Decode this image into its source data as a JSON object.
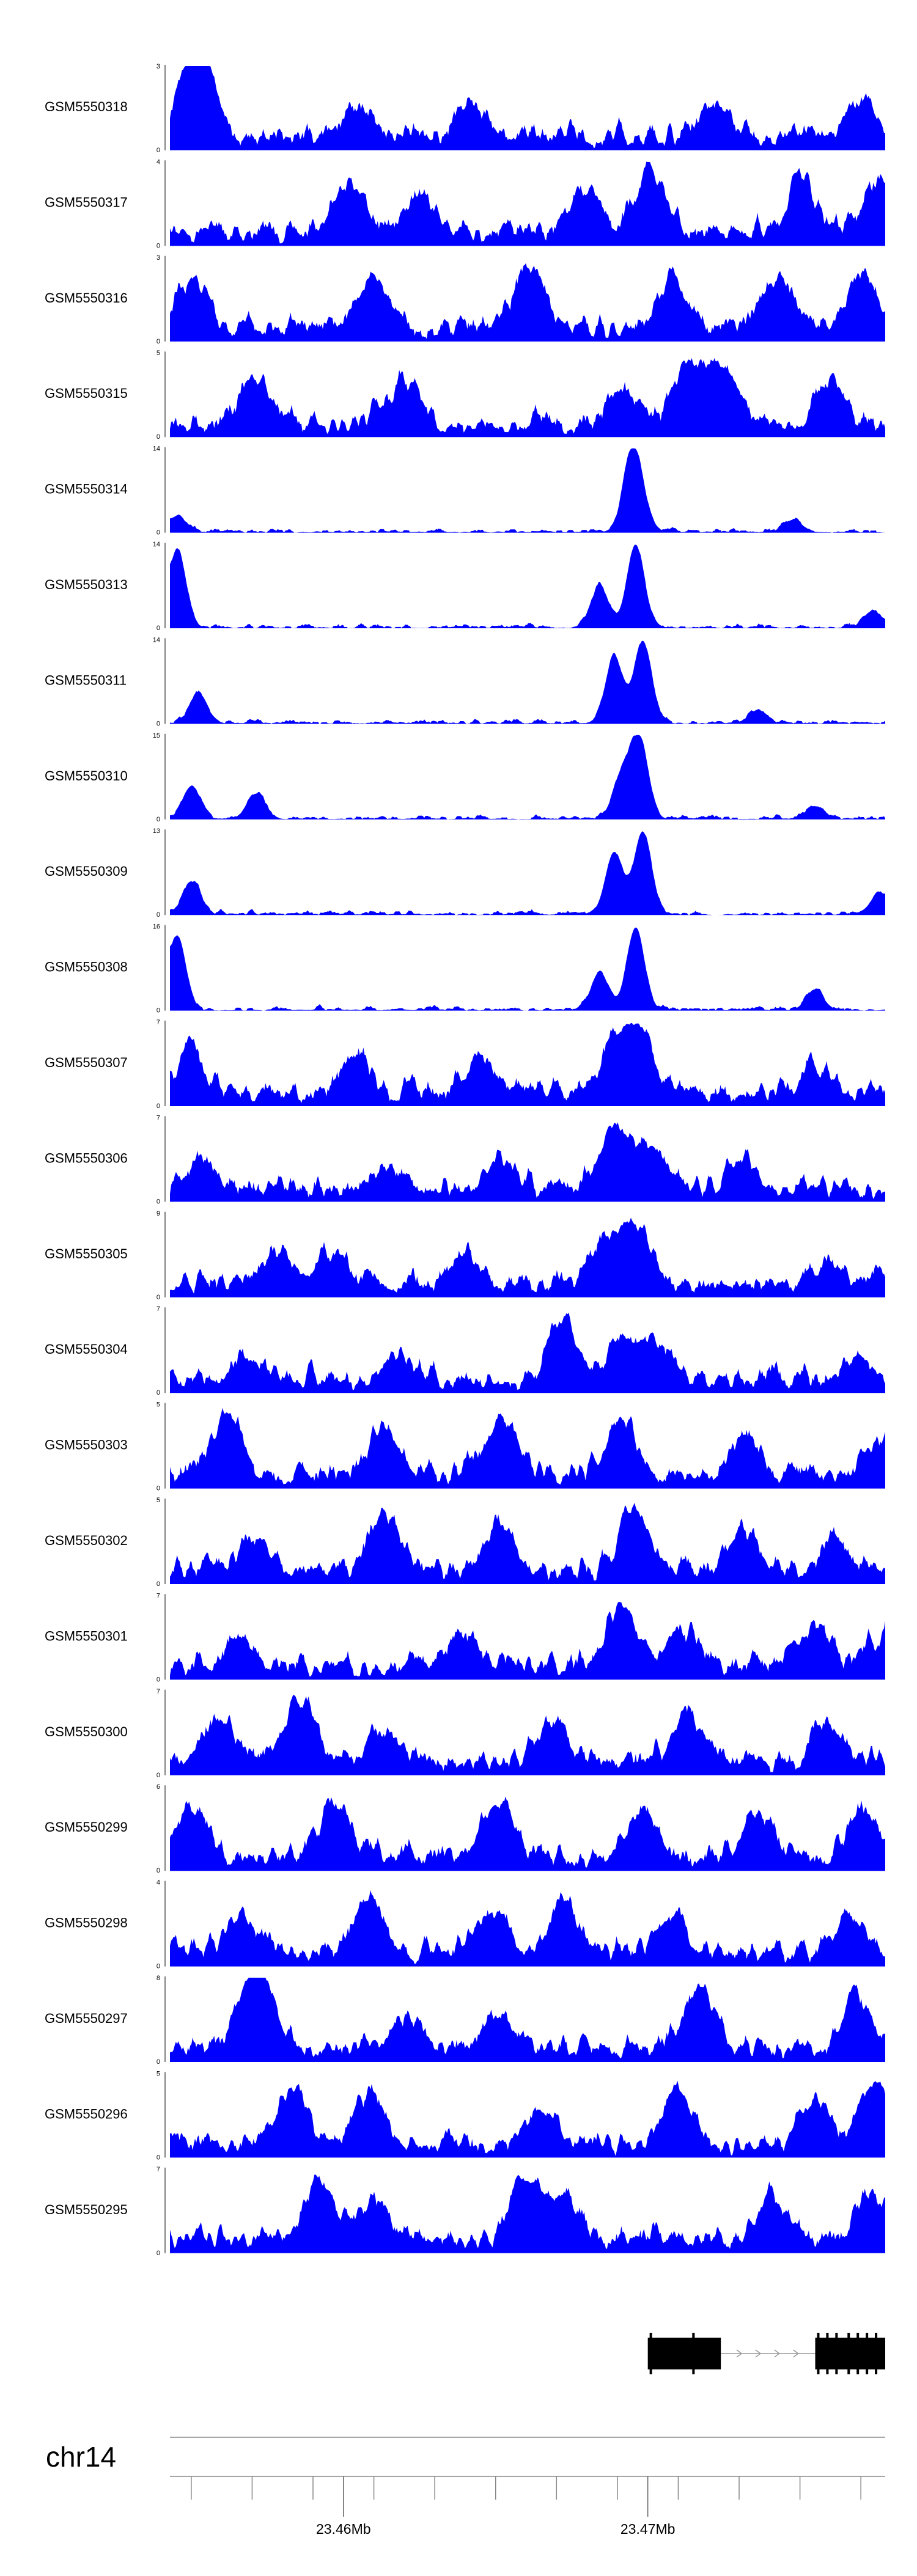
{
  "chart_data": {
    "type": "area",
    "color": "#0000ff",
    "x_unit": "Mb",
    "xlim": [
      23.4543,
      23.4778
    ],
    "axis": {
      "chromosome": "chr14",
      "ticks": [
        23.455,
        23.457,
        23.459,
        23.461,
        23.463,
        23.465,
        23.467,
        23.469,
        23.471,
        23.473,
        23.475,
        23.477
      ],
      "labeled_ticks": [
        {
          "value": 23.46,
          "label": "23.46Mb"
        },
        {
          "value": 23.47,
          "label": "23.47Mb"
        }
      ]
    },
    "tracks": [
      {
        "name": "GSM5550318",
        "ymax": "3",
        "max": 3,
        "peaks": [
          [
            0.03,
            0.95
          ],
          [
            0.045,
            1.0
          ],
          [
            0.26,
            0.4
          ],
          [
            0.42,
            0.55
          ],
          [
            0.76,
            0.5
          ],
          [
            0.97,
            0.55
          ]
        ]
      },
      {
        "name": "GSM5550317",
        "ymax": "4",
        "max": 4,
        "peaks": [
          [
            0.25,
            0.85
          ],
          [
            0.35,
            0.6
          ],
          [
            0.58,
            0.7
          ],
          [
            0.67,
            1.0
          ],
          [
            0.88,
            0.8
          ],
          [
            0.99,
            0.7
          ]
        ]
      },
      {
        "name": "GSM5550316",
        "ymax": "3",
        "max": 3,
        "peaks": [
          [
            0.03,
            0.8
          ],
          [
            0.28,
            0.85
          ],
          [
            0.5,
            1.0
          ],
          [
            0.7,
            0.8
          ],
          [
            0.85,
            0.85
          ],
          [
            0.97,
            0.75
          ]
        ]
      },
      {
        "name": "GSM5550315",
        "ymax": "5",
        "max": 5,
        "peaks": [
          [
            0.12,
            0.75
          ],
          [
            0.33,
            0.7
          ],
          [
            0.63,
            0.5
          ],
          [
            0.72,
            0.9
          ],
          [
            0.77,
            0.95
          ],
          [
            0.92,
            0.65
          ]
        ]
      },
      {
        "name": "GSM5550314",
        "ymax": "14",
        "max": 14,
        "peaks": [
          [
            0.01,
            0.2
          ],
          [
            0.66,
            0.2
          ],
          [
            0.645,
            1.0
          ],
          [
            0.87,
            0.15
          ]
        ]
      },
      {
        "name": "GSM5550313",
        "ymax": "14",
        "max": 14,
        "peaks": [
          [
            0.01,
            0.95
          ],
          [
            0.6,
            0.5
          ],
          [
            0.65,
            1.0
          ],
          [
            0.98,
            0.2
          ]
        ]
      },
      {
        "name": "GSM5550311",
        "ymax": "14",
        "max": 14,
        "peaks": [
          [
            0.04,
            0.35
          ],
          [
            0.62,
            0.8
          ],
          [
            0.66,
            1.0
          ],
          [
            0.82,
            0.15
          ]
        ]
      },
      {
        "name": "GSM5550310",
        "ymax": "15",
        "max": 15,
        "peaks": [
          [
            0.03,
            0.4
          ],
          [
            0.12,
            0.3
          ],
          [
            0.63,
            0.5
          ],
          [
            0.655,
            1.0
          ],
          [
            0.9,
            0.15
          ]
        ]
      },
      {
        "name": "GSM5550309",
        "ymax": "13",
        "max": 13,
        "peaks": [
          [
            0.03,
            0.4
          ],
          [
            0.62,
            0.75
          ],
          [
            0.66,
            1.0
          ],
          [
            0.99,
            0.25
          ]
        ]
      },
      {
        "name": "GSM5550308",
        "ymax": "16",
        "max": 16,
        "peaks": [
          [
            0.01,
            0.9
          ],
          [
            0.6,
            0.45
          ],
          [
            0.65,
            1.0
          ],
          [
            0.9,
            0.25
          ]
        ]
      },
      {
        "name": "GSM5550307",
        "ymax": "7",
        "max": 7,
        "peaks": [
          [
            0.03,
            0.6
          ],
          [
            0.26,
            0.6
          ],
          [
            0.43,
            0.55
          ],
          [
            0.62,
            0.7
          ],
          [
            0.655,
            1.0
          ],
          [
            0.9,
            0.4
          ]
        ]
      },
      {
        "name": "GSM5550306",
        "ymax": "7",
        "max": 7,
        "peaks": [
          [
            0.04,
            0.4
          ],
          [
            0.3,
            0.4
          ],
          [
            0.46,
            0.45
          ],
          [
            0.62,
            1.0
          ],
          [
            0.67,
            0.7
          ],
          [
            0.8,
            0.5
          ]
        ]
      },
      {
        "name": "GSM5550305",
        "ymax": "9",
        "max": 9,
        "peaks": [
          [
            0.15,
            0.55
          ],
          [
            0.22,
            0.5
          ],
          [
            0.41,
            0.35
          ],
          [
            0.6,
            0.5
          ],
          [
            0.645,
            1.0
          ],
          [
            0.92,
            0.3
          ]
        ]
      },
      {
        "name": "GSM5550304",
        "ymax": "7",
        "max": 7,
        "peaks": [
          [
            0.11,
            0.4
          ],
          [
            0.32,
            0.4
          ],
          [
            0.55,
            1.0
          ],
          [
            0.63,
            0.7
          ],
          [
            0.68,
            0.6
          ],
          [
            0.96,
            0.45
          ]
        ]
      },
      {
        "name": "GSM5550303",
        "ymax": "5",
        "max": 5,
        "peaks": [
          [
            0.08,
            1.0
          ],
          [
            0.3,
            0.7
          ],
          [
            0.46,
            0.95
          ],
          [
            0.63,
            0.85
          ],
          [
            0.8,
            0.6
          ],
          [
            0.99,
            0.5
          ]
        ]
      },
      {
        "name": "GSM5550302",
        "ymax": "5",
        "max": 5,
        "peaks": [
          [
            0.12,
            0.6
          ],
          [
            0.3,
            0.85
          ],
          [
            0.46,
            0.75
          ],
          [
            0.65,
            1.0
          ],
          [
            0.8,
            0.65
          ],
          [
            0.93,
            0.45
          ]
        ]
      },
      {
        "name": "GSM5550301",
        "ymax": "7",
        "max": 7,
        "peaks": [
          [
            0.1,
            0.45
          ],
          [
            0.41,
            0.5
          ],
          [
            0.63,
            1.0
          ],
          [
            0.72,
            0.5
          ],
          [
            0.9,
            0.65
          ],
          [
            0.99,
            0.4
          ]
        ]
      },
      {
        "name": "GSM5550300",
        "ymax": "7",
        "max": 7,
        "peaks": [
          [
            0.07,
            0.7
          ],
          [
            0.18,
            1.0
          ],
          [
            0.3,
            0.5
          ],
          [
            0.53,
            0.6
          ],
          [
            0.72,
            0.75
          ],
          [
            0.92,
            0.6
          ]
        ]
      },
      {
        "name": "GSM5550299",
        "ymax": "6",
        "max": 6,
        "peaks": [
          [
            0.03,
            0.8
          ],
          [
            0.23,
            0.85
          ],
          [
            0.46,
            0.9
          ],
          [
            0.66,
            0.75
          ],
          [
            0.82,
            0.75
          ],
          [
            0.97,
            0.8
          ]
        ]
      },
      {
        "name": "GSM5550298",
        "ymax": "4",
        "max": 4,
        "peaks": [
          [
            0.1,
            0.65
          ],
          [
            0.28,
            0.85
          ],
          [
            0.45,
            0.7
          ],
          [
            0.55,
            0.75
          ],
          [
            0.7,
            0.6
          ],
          [
            0.95,
            0.6
          ]
        ]
      },
      {
        "name": "GSM5550297",
        "ymax": "8",
        "max": 8,
        "peaks": [
          [
            0.11,
            0.75
          ],
          [
            0.13,
            0.9
          ],
          [
            0.33,
            0.5
          ],
          [
            0.46,
            0.6
          ],
          [
            0.74,
            1.0
          ],
          [
            0.96,
            0.75
          ]
        ]
      },
      {
        "name": "GSM5550296",
        "ymax": "5",
        "max": 5,
        "peaks": [
          [
            0.17,
            0.9
          ],
          [
            0.28,
            0.85
          ],
          [
            0.52,
            0.6
          ],
          [
            0.71,
            0.85
          ],
          [
            0.9,
            0.7
          ],
          [
            0.98,
            0.9
          ]
        ]
      },
      {
        "name": "GSM5550295",
        "ymax": "7",
        "max": 7,
        "peaks": [
          [
            0.21,
            1.0
          ],
          [
            0.28,
            0.6
          ],
          [
            0.5,
            1.0
          ],
          [
            0.55,
            0.7
          ],
          [
            0.84,
            0.7
          ],
          [
            0.98,
            0.65
          ]
        ]
      }
    ],
    "gene_model": {
      "blocks": [
        [
          23.47,
          23.4724
        ],
        [
          23.4755,
          23.4778
        ]
      ],
      "strand": "+",
      "exon_marks": [
        23.4701,
        23.4715,
        23.4756,
        23.4759,
        23.4762,
        23.4766,
        23.4769,
        23.4772,
        23.4775
      ]
    }
  }
}
